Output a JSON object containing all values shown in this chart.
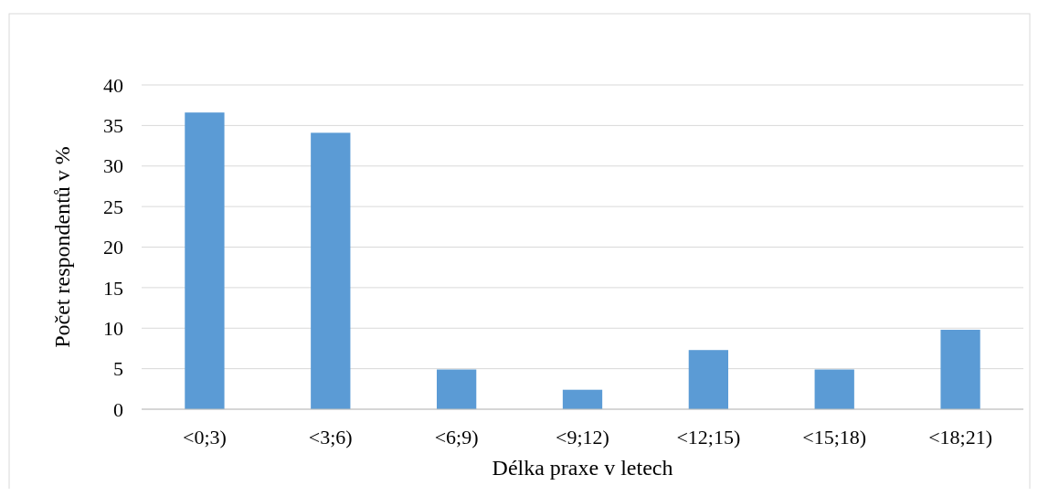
{
  "chart_data": {
    "type": "bar",
    "xlabel": "Délka praxe v letech",
    "ylabel": "Počet respondentů v %",
    "categories": [
      "<0;3)",
      "<3;6)",
      "<6;9)",
      "<9;12)",
      "<12;15)",
      "<15;18)",
      "<18;21)"
    ],
    "values": [
      36.6,
      34.1,
      4.9,
      2.4,
      7.3,
      4.9,
      9.8
    ],
    "color": "#5b9bd5",
    "ylim": [
      0,
      40
    ],
    "yticks": [
      0,
      5,
      10,
      15,
      20,
      25,
      30,
      35,
      40
    ],
    "grid": "y"
  }
}
